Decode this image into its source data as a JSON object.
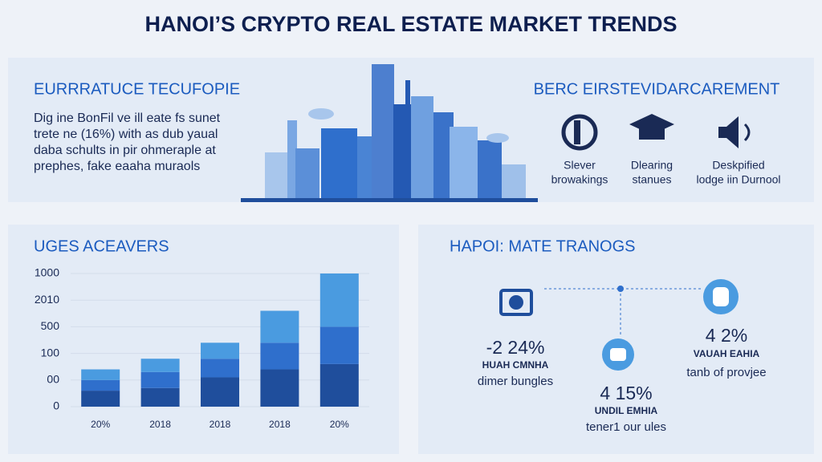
{
  "title": "HANOI’S CRYPTO REAL ESTATE MARKET TRENDS",
  "intro": {
    "heading": "EURRRATUCE TECUFOPIE",
    "lines": [
      "Dig ine BonFil ve ill eate fs sunet",
      "trete ne (16%) with as dub yaual",
      "daba schults in pir ohmeraple at",
      "prephes, fake eaaha muraols"
    ]
  },
  "features": {
    "heading": "BERC EIRSTEVIDARCAREMENT",
    "items": [
      {
        "lines": [
          "Slever",
          "browakings"
        ]
      },
      {
        "lines": [
          "Dlearing",
          "stanues"
        ]
      },
      {
        "lines": [
          "Deskpified",
          "lodge iin Durnool"
        ]
      }
    ]
  },
  "chart_data": {
    "type": "stacked_bar",
    "title": "UGES ACEAVERS",
    "categories": [
      "20%",
      "2018",
      "2018",
      "2018",
      "20%"
    ],
    "series": [
      {
        "color": "#1f4e9c",
        "values": [
          0.6,
          0.7,
          1.1,
          1.4,
          1.6
        ]
      },
      {
        "color": "#2f6fcc",
        "values": [
          0.4,
          0.6,
          0.7,
          1.0,
          1.4
        ]
      },
      {
        "color": "#4a9be0",
        "values": [
          0.4,
          0.5,
          0.6,
          1.2,
          2.0
        ]
      }
    ],
    "ylim": [
      0,
      5
    ],
    "yticks": [
      0,
      {
        "value": 1,
        "label": "00"
      },
      {
        "value": 2,
        "label": "100"
      },
      {
        "value": 3,
        "label": "500"
      },
      {
        "value": 4,
        "label": "2010"
      },
      {
        "value": 5,
        "label": "1000"
      }
    ],
    "grid": true
  },
  "trends": {
    "heading": "HAPOI: MATE TRANOGS",
    "stats": [
      {
        "value": "-2 24%",
        "label": "HUAH CMNHA",
        "caption": "dimer bungles"
      },
      {
        "value": "4 15%",
        "label": "UNDIL EMHIA",
        "caption": "tener1 our ules"
      },
      {
        "value": "4 2%",
        "label": "VAUAH EAHIA",
        "caption": "tanb of provjee"
      }
    ]
  }
}
